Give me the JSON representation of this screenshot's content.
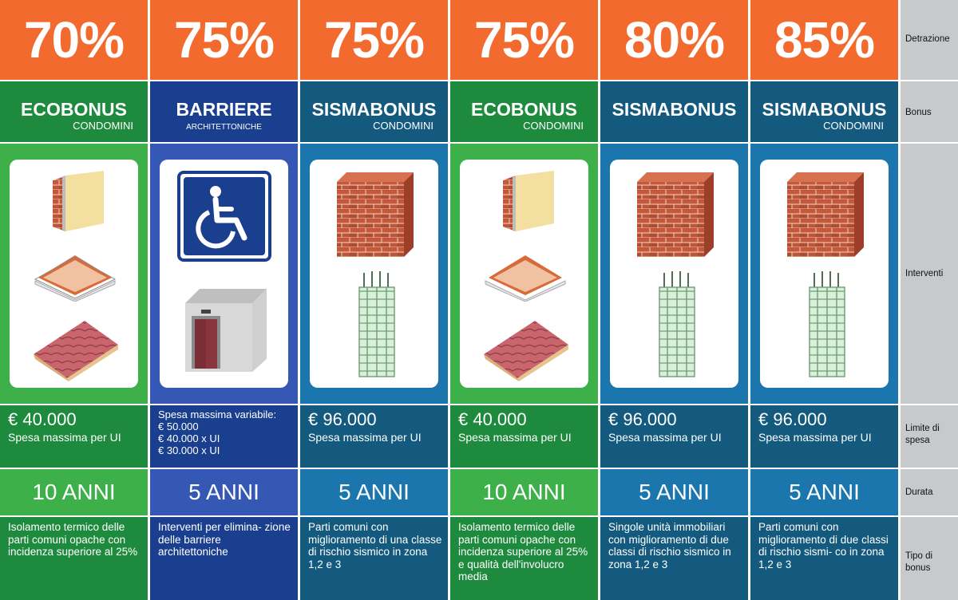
{
  "colors": {
    "orange": "#f26a2e",
    "green_dark": "#1e8a3e",
    "green_light": "#3db04a",
    "navy": "#1b3f8f",
    "navy_light": "#3558b4",
    "teal_dark": "#135a7e",
    "teal_light": "#1a76ad",
    "sidebar": "#c8c9cb"
  },
  "sidebar": {
    "detrazione": "Detrazione",
    "bonus": "Bonus",
    "interventi": "Interventi",
    "limite": "Limite di spesa",
    "durata": "Durata",
    "tipo": "Tipo di bonus"
  },
  "columns": [
    {
      "percent": "70%",
      "bonus_title": "ECOBONUS",
      "bonus_sub": "CONDOMINI",
      "limit_amount": "€ 40.000",
      "limit_label": "Spesa massima per UI",
      "duration": "10 ANNI",
      "tipo": "Isolamento termico delle parti comuni opache con incidenza superiore al 25%",
      "icons": [
        "insulated-wall-icon",
        "insulated-ceiling-icon",
        "insulated-roof-icon"
      ]
    },
    {
      "percent": "75%",
      "bonus_title": "BARRIERE",
      "bonus_sub": "ARCHITETTONICHE",
      "limit_title": "Spesa massima variabile:",
      "limit_items": [
        "€ 50.000",
        "€ 40.000 x UI",
        "€ 30.000 x UI"
      ],
      "duration": "5 ANNI",
      "tipo": "Interventi per elimina- zione delle barriere architettoniche",
      "icons": [
        "wheelchair-icon",
        "elevator-icon"
      ]
    },
    {
      "percent": "75%",
      "bonus_title": "SISMABONUS",
      "bonus_sub": "CONDOMINI",
      "limit_amount": "€ 96.000",
      "limit_label": "Spesa massima per UI",
      "duration": "5 ANNI",
      "tipo": "Parti comuni con miglioramento di una classe di rischio sismico in zona 1,2 e 3",
      "icons": [
        "brick-wall-icon",
        "reinforced-pillar-icon"
      ]
    },
    {
      "percent": "75%",
      "bonus_title": "ECOBONUS",
      "bonus_sub": "CONDOMINI",
      "limit_amount": "€ 40.000",
      "limit_label": "Spesa massima per UI",
      "duration": "10 ANNI",
      "tipo": "Isolamento termico delle parti comuni opache con incidenza superiore al 25% e qualità dell'involucro media",
      "icons": [
        "insulated-wall-icon",
        "insulated-ceiling-icon",
        "insulated-roof-icon"
      ]
    },
    {
      "percent": "80%",
      "bonus_title": "SISMABONUS",
      "bonus_sub": "",
      "limit_amount": "€ 96.000",
      "limit_label": "Spesa massima per UI",
      "duration": "5 ANNI",
      "tipo": "Singole unità immobiliari con miglioramento di due classi di rischio sismico in zona 1,2 e 3",
      "icons": [
        "brick-wall-icon",
        "reinforced-pillar-icon"
      ]
    },
    {
      "percent": "85%",
      "bonus_title": "SISMABONUS",
      "bonus_sub": "CONDOMINI",
      "limit_amount": "€ 96.000",
      "limit_label": "Spesa massima per UI",
      "duration": "5 ANNI",
      "tipo": "Parti comuni con miglioramento di due classi di rischio sismi- co in zona 1,2 e 3",
      "icons": [
        "brick-wall-icon",
        "reinforced-pillar-icon"
      ]
    }
  ]
}
